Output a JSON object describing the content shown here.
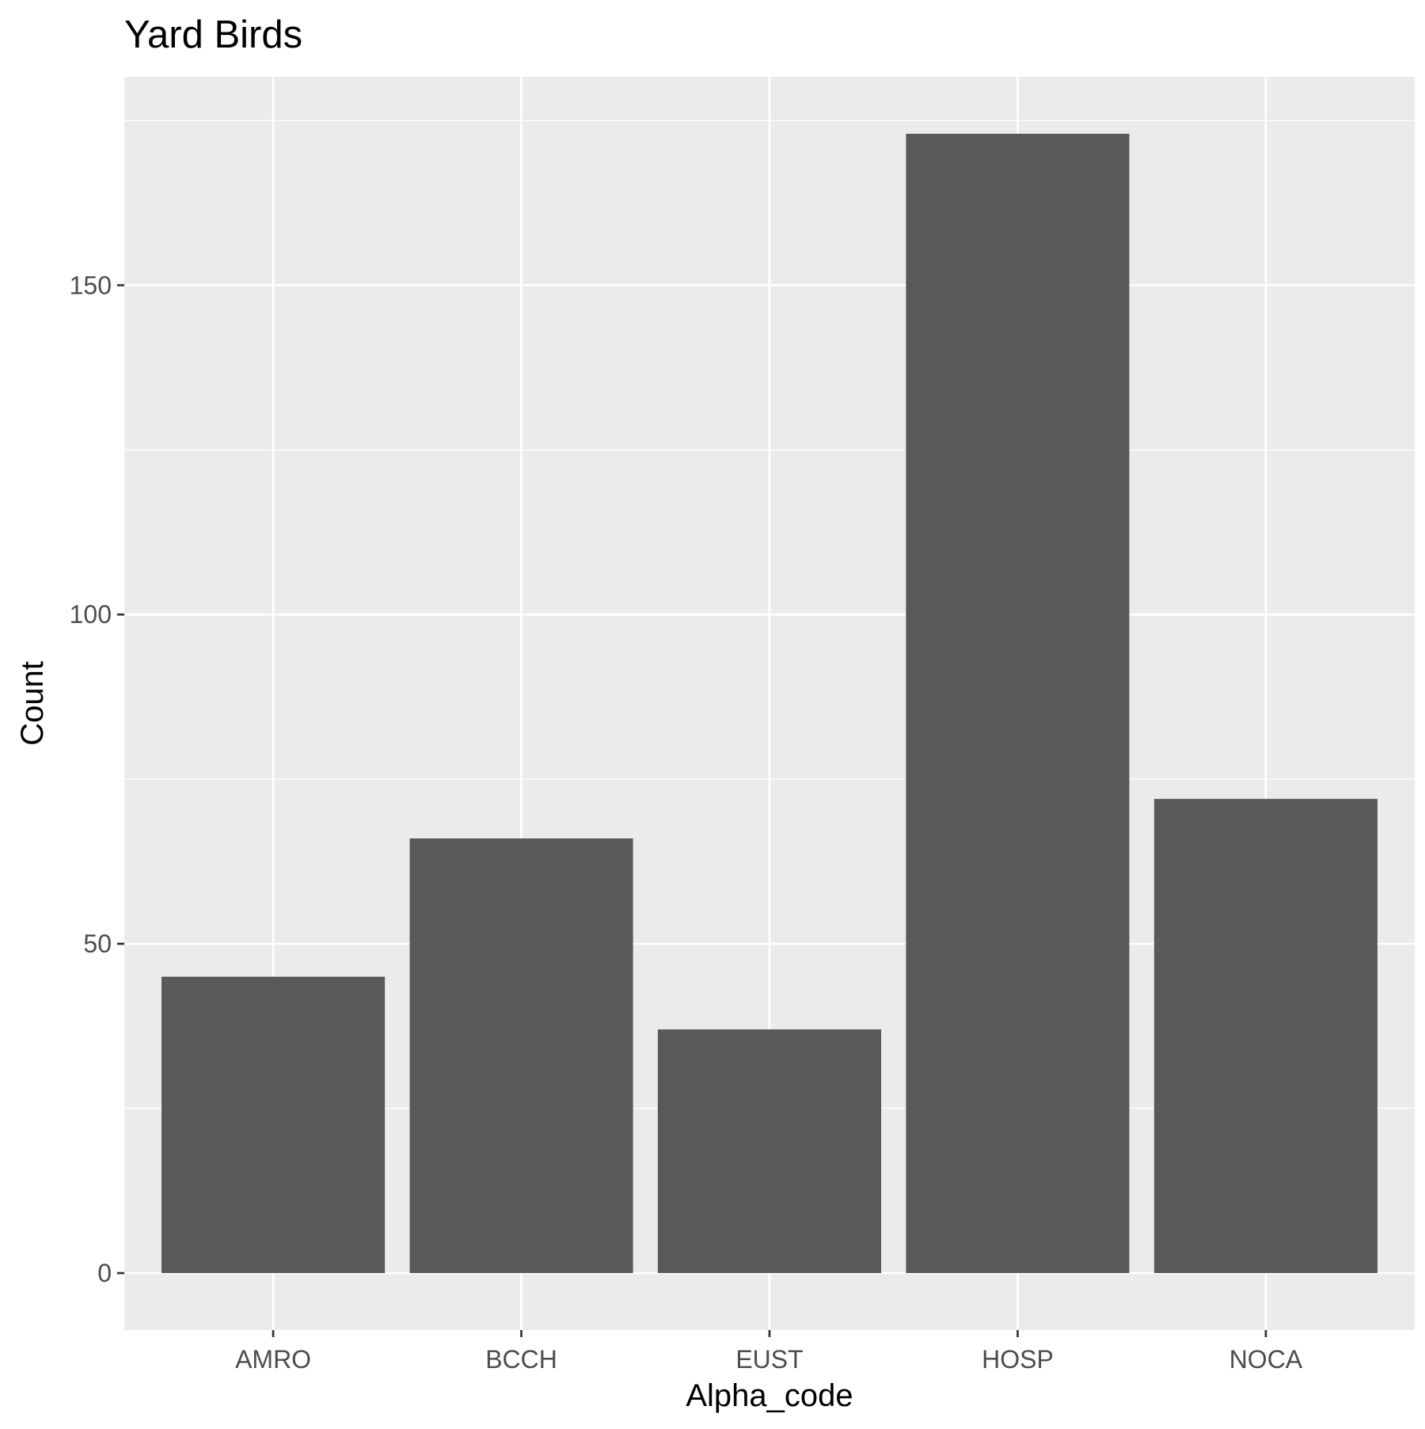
{
  "chart_data": {
    "type": "bar",
    "title": "Yard Birds",
    "xlabel": "Alpha_code",
    "ylabel": "Count",
    "categories": [
      "AMRO",
      "BCCH",
      "EUST",
      "HOSP",
      "NOCA"
    ],
    "values": [
      45,
      66,
      37,
      173,
      72
    ],
    "ylim": [
      -8.65,
      181.65
    ],
    "yticks": [
      0,
      50,
      100,
      150
    ],
    "ytick_labels": [
      "0",
      "50",
      "100",
      "150"
    ],
    "grid": true,
    "legend": "none"
  },
  "colors": {
    "panel_background": "#EBEBEB",
    "grid_line": "#FFFFFF",
    "bar_fill": "#595959",
    "tick_mark": "#333333",
    "tick_text": "#4D4D4D",
    "title_text": "#000000"
  }
}
